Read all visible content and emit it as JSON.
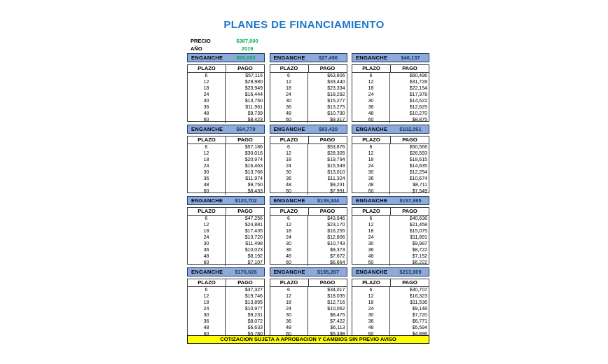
{
  "title": "PLANES DE FINANCIAMIENTO",
  "info": {
    "precio_label": "PRECIO",
    "precio_value": "$367,000",
    "ano_label": "AÑO",
    "ano_value": "2019"
  },
  "labels": {
    "enganche": "ENGANCHE",
    "plazo": "PLAZO",
    "pago": "PAGO"
  },
  "plazos": [
    "6",
    "12",
    "18",
    "24",
    "30",
    "36",
    "48",
    "60"
  ],
  "plans": [
    {
      "enganche": "$65,000",
      "value_color": "#00b050",
      "pagos": [
        "$57,116",
        "$29,980",
        "$20,949",
        "$16,444",
        "$13,750",
        "$11,961",
        "$9,739",
        "$8,423"
      ]
    },
    {
      "enganche": "$27,496",
      "value_color": "#17375e",
      "pagos": [
        "$63,806",
        "$33,440",
        "$23,334",
        "$18,292",
        "$15,277",
        "$13,275",
        "$10,790",
        "$9,317"
      ]
    },
    {
      "enganche": "$46,137",
      "value_color": "#17375e",
      "pagos": [
        "$60,496",
        "$31,728",
        "$22,154",
        "$17,378",
        "$14,522",
        "$12,625",
        "$10,270",
        "$8,875"
      ]
    },
    {
      "enganche": "$64,779",
      "value_color": "#17375e",
      "pagos": [
        "$57,186",
        "$30,016",
        "$20,974",
        "$16,463",
        "$13,766",
        "$11,974",
        "$9,750",
        "$8,433"
      ]
    },
    {
      "enganche": "$83,420",
      "value_color": "#17375e",
      "pagos": [
        "$53,876",
        "$28,305",
        "$19,794",
        "$15,549",
        "$13,010",
        "$11,324",
        "$9,231",
        "$7,991"
      ]
    },
    {
      "enganche": "$102,061",
      "value_color": "#17375e",
      "pagos": [
        "$50,566",
        "$26,593",
        "$18,615",
        "$14,635",
        "$12,254",
        "$10,674",
        "$8,711",
        "$7,549"
      ]
    },
    {
      "enganche": "$120,702",
      "value_color": "#17375e",
      "pagos": [
        "$47,256",
        "$24,881",
        "$17,435",
        "$13,720",
        "$11,498",
        "$10,023",
        "$8,192",
        "$7,107"
      ]
    },
    {
      "enganche": "$139,344",
      "value_color": "#17375e",
      "pagos": [
        "$43,946",
        "$23,170",
        "$16,255",
        "$12,806",
        "$10,743",
        "$9,373",
        "$7,672",
        "$6,664"
      ]
    },
    {
      "enganche": "$157,985",
      "value_color": "#17375e",
      "pagos": [
        "$40,636",
        "$21,458",
        "$15,075",
        "$11,891",
        "$9,987",
        "$8,722",
        "$7,152",
        "$6,222"
      ]
    },
    {
      "enganche": "$176,626",
      "value_color": "#17375e",
      "pagos": [
        "$37,327",
        "$19,746",
        "$13,895",
        "$10,977",
        "$9,231",
        "$8,072",
        "$6,633",
        "$5,780"
      ]
    },
    {
      "enganche": "$195,267",
      "value_color": "#17375e",
      "pagos": [
        "$34,017",
        "$18,035",
        "$12,716",
        "$10,062",
        "$8,475",
        "$7,422",
        "$6,113",
        "$5,338"
      ]
    },
    {
      "enganche": "$213,909",
      "value_color": "#17375e",
      "pagos": [
        "$30,707",
        "$16,323",
        "$11,536",
        "$9,148",
        "$7,720",
        "$6,771",
        "$5,594",
        "$4,896"
      ]
    }
  ],
  "footer": "COTIZACION SUJETA A APROBACION Y CAMBIOS SIN PREVIO AVISO",
  "colors": {
    "title_blue": "#1b76c8",
    "accent_green": "#00b050",
    "header_fill": "#8eaadb",
    "header_border": "#17375e",
    "enganche_value_navy": "#17375e",
    "banner_yellow": "#ffff00",
    "table_border": "#3b3b3b"
  }
}
